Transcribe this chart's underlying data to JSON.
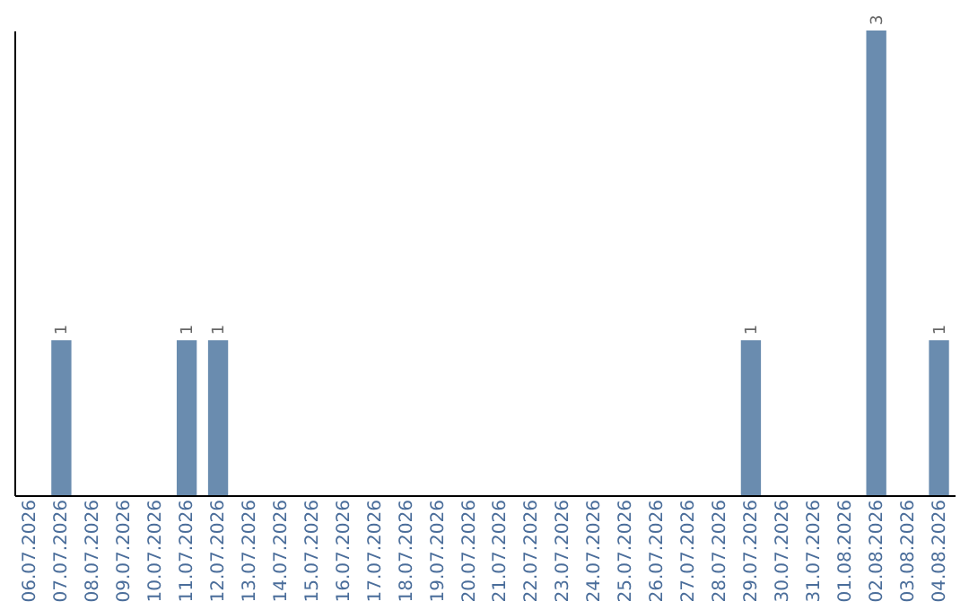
{
  "chart_data": {
    "type": "bar",
    "categories": [
      "06.07.2026",
      "07.07.2026",
      "08.07.2026",
      "09.07.2026",
      "10.07.2026",
      "11.07.2026",
      "12.07.2026",
      "13.07.2026",
      "14.07.2026",
      "15.07.2026",
      "16.07.2026",
      "17.07.2026",
      "18.07.2026",
      "19.07.2026",
      "20.07.2026",
      "21.07.2026",
      "22.07.2026",
      "23.07.2026",
      "24.07.2026",
      "25.07.2026",
      "26.07.2026",
      "27.07.2026",
      "28.07.2026",
      "29.07.2026",
      "30.07.2026",
      "31.07.2026",
      "01.08.2026",
      "02.08.2026",
      "03.08.2026",
      "04.08.2026"
    ],
    "values": [
      0,
      1,
      0,
      0,
      0,
      1,
      1,
      0,
      0,
      0,
      0,
      0,
      0,
      0,
      0,
      0,
      0,
      0,
      0,
      0,
      0,
      0,
      0,
      1,
      0,
      0,
      0,
      3,
      0,
      1
    ],
    "color": "#6a8caf",
    "value_labels": [
      null,
      "1",
      null,
      null,
      null,
      "1",
      "1",
      null,
      null,
      null,
      null,
      null,
      null,
      null,
      null,
      null,
      null,
      null,
      null,
      null,
      null,
      null,
      null,
      "1",
      null,
      null,
      null,
      "3",
      null,
      "1"
    ],
    "tick_labels": "x"
  }
}
